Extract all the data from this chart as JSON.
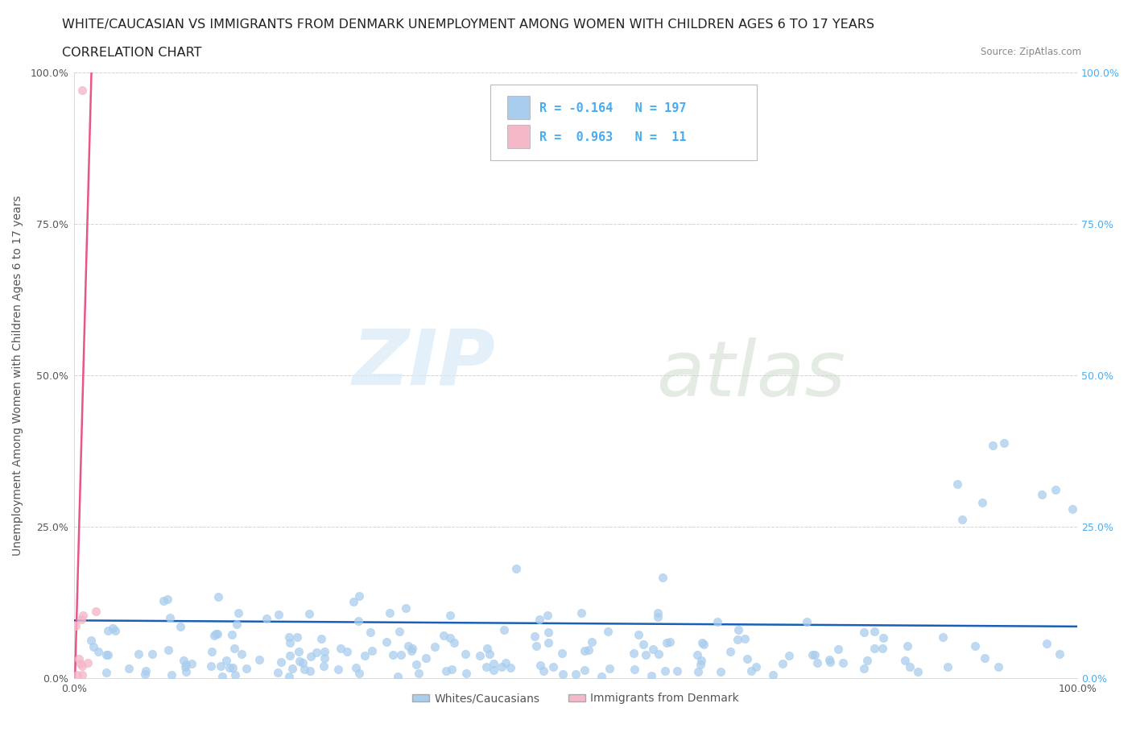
{
  "title_line1": "WHITE/CAUCASIAN VS IMMIGRANTS FROM DENMARK UNEMPLOYMENT AMONG WOMEN WITH CHILDREN AGES 6 TO 17 YEARS",
  "title_line2": "CORRELATION CHART",
  "source_text": "Source: ZipAtlas.com",
  "ylabel": "Unemployment Among Women with Children Ages 6 to 17 years",
  "xlim": [
    0.0,
    1.0
  ],
  "ylim": [
    0.0,
    1.0
  ],
  "xticks": [
    0.0,
    0.25,
    0.5,
    0.75,
    1.0
  ],
  "yticks": [
    0.0,
    0.25,
    0.5,
    0.75,
    1.0
  ],
  "xtick_labels": [
    "0.0%",
    "",
    "",
    "",
    "100.0%"
  ],
  "ytick_labels": [
    "0.0%",
    "25.0%",
    "50.0%",
    "75.0%",
    "100.0%"
  ],
  "right_ytick_labels": [
    "0.0%",
    "25.0%",
    "50.0%",
    "75.0%",
    "100.0%"
  ],
  "watermark_zip": "ZIP",
  "watermark_atlas": "atlas",
  "blue_color": "#A8CDED",
  "pink_color": "#F5B8C8",
  "blue_line_color": "#1B5EB8",
  "pink_line_color": "#E8558A",
  "legend_label1": "Whites/Caucasians",
  "legend_label2": "Immigrants from Denmark",
  "R_blue": -0.164,
  "N_blue": 197,
  "R_pink": 0.963,
  "N_pink": 11,
  "background_color": "#FFFFFF",
  "grid_color": "#C8C8C8",
  "title_fontsize": 11.5,
  "subtitle_fontsize": 11.5,
  "axis_label_fontsize": 10,
  "tick_fontsize": 9,
  "right_label_color": "#4AACF0"
}
